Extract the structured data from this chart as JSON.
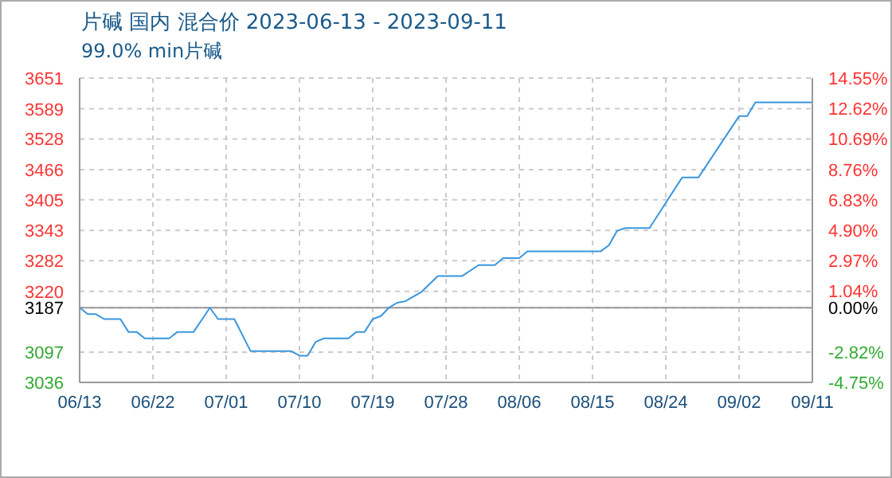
{
  "chart_data": {
    "type": "line",
    "title": "片碱 国内 混合价 2023-06-13 - 2023-09-11",
    "subtitle": "99.0% min片碱",
    "x": [
      "2023-06-13",
      "2023-06-14",
      "2023-06-15",
      "2023-06-16",
      "2023-06-18",
      "2023-06-19",
      "2023-06-20",
      "2023-06-21",
      "2023-06-24",
      "2023-06-25",
      "2023-06-27",
      "2023-06-29",
      "2023-06-30",
      "2023-07-02",
      "2023-07-04",
      "2023-07-09",
      "2023-07-10",
      "2023-07-11",
      "2023-07-12",
      "2023-07-13",
      "2023-07-16",
      "2023-07-17",
      "2023-07-18",
      "2023-07-19",
      "2023-07-20",
      "2023-07-21",
      "2023-07-22",
      "2023-07-23",
      "2023-07-25",
      "2023-07-27",
      "2023-07-30",
      "2023-08-01",
      "2023-08-03",
      "2023-08-04",
      "2023-08-06",
      "2023-08-07",
      "2023-08-16",
      "2023-08-17",
      "2023-08-18",
      "2023-08-19",
      "2023-08-22",
      "2023-08-26",
      "2023-08-28",
      "2023-09-02",
      "2023-09-03",
      "2023-09-04",
      "2023-09-11"
    ],
    "series": [
      {
        "color": "#3a96dd",
        "values": [
          3187,
          3174,
          3174,
          3164,
          3164,
          3138,
          3138,
          3125,
          3125,
          3138,
          3138,
          3187,
          3164,
          3164,
          3099,
          3099,
          3090,
          3090,
          3118,
          3125,
          3125,
          3138,
          3138,
          3164,
          3170,
          3187,
          3197,
          3200,
          3219,
          3251,
          3251,
          3273,
          3273,
          3287,
          3287,
          3301,
          3301,
          3313,
          3342,
          3348,
          3348,
          3450,
          3450,
          3574,
          3574,
          3602,
          3602
        ]
      }
    ],
    "xlim": [
      "2023-06-13",
      "2023-09-11"
    ],
    "xticks": [
      {
        "value": "2023-06-13",
        "label": "06/13"
      },
      {
        "value": "2023-06-22",
        "label": "06/22"
      },
      {
        "value": "2023-07-01",
        "label": "07/01"
      },
      {
        "value": "2023-07-10",
        "label": "07/10"
      },
      {
        "value": "2023-07-19",
        "label": "07/19"
      },
      {
        "value": "2023-07-28",
        "label": "07/28"
      },
      {
        "value": "2023-08-06",
        "label": "08/06"
      },
      {
        "value": "2023-08-15",
        "label": "08/15"
      },
      {
        "value": "2023-08-24",
        "label": "08/24"
      },
      {
        "value": "2023-09-02",
        "label": "09/02"
      },
      {
        "value": "2023-09-11",
        "label": "09/11"
      }
    ],
    "ylim": [
      3036,
      3651
    ],
    "yticks": [
      3036,
      3097,
      3187,
      3220,
      3282,
      3343,
      3405,
      3466,
      3528,
      3589,
      3651
    ],
    "y2lim": [
      -4.75,
      14.55
    ],
    "y2ticks": [
      {
        "value": -4.75,
        "label": "-4.75%"
      },
      {
        "value": -2.82,
        "label": "-2.82%"
      },
      {
        "value": 0,
        "label": "0.00%"
      },
      {
        "value": 1.04,
        "label": "1.04%"
      },
      {
        "value": 2.97,
        "label": "2.97%"
      },
      {
        "value": 4.9,
        "label": "4.90%"
      },
      {
        "value": 6.83,
        "label": "6.83%"
      },
      {
        "value": 8.76,
        "label": "8.76%"
      },
      {
        "value": 10.69,
        "label": "10.69%"
      },
      {
        "value": 12.62,
        "label": "12.62%"
      },
      {
        "value": 14.55,
        "label": "14.55%"
      }
    ],
    "ref_lines": [
      {
        "axis": "y",
        "value": 3187,
        "color": "#999999"
      }
    ],
    "grid": true,
    "marker": "none",
    "line_style": "solid"
  }
}
